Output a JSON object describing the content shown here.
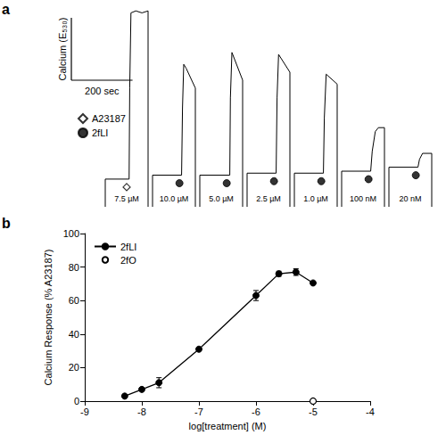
{
  "chart_data": [
    {
      "type": "line",
      "panel_label": "a",
      "ylabel": "Calcium (E₅₃₀)",
      "scale_bar": {
        "value": 200,
        "label": "200 sec"
      },
      "xlim": [
        0,
        140
      ],
      "ylim": [
        0,
        100
      ],
      "tick_labels": false,
      "grid": false,
      "legend": "upper left",
      "color": "#000000",
      "markers": [
        {
          "name": "A23187",
          "marker": "diamond-open"
        },
        {
          "name": "2fLI",
          "marker": "circle"
        }
      ],
      "series": [
        {
          "label": "7.5 µM",
          "treatment": "A23187",
          "addition": 70,
          "x": [
            0,
            0,
            78,
            80,
            84,
            100,
            120,
            140,
            140
          ],
          "values": [
            0,
            14,
            14,
            60,
            98,
            99,
            98,
            99,
            0
          ]
        },
        {
          "label": "10.0 µM",
          "treatment": "2fLI",
          "addition": 88,
          "x": [
            0,
            0,
            95,
            98,
            102,
            110,
            140,
            140
          ],
          "values": [
            0,
            16,
            16,
            50,
            72,
            70,
            60,
            0
          ]
        },
        {
          "label": "5.0 µM",
          "treatment": "2fLI",
          "addition": 88,
          "x": [
            0,
            0,
            98,
            100,
            105,
            140,
            140
          ],
          "values": [
            0,
            16,
            16,
            55,
            78,
            64,
            0
          ]
        },
        {
          "label": "2.5 µM",
          "treatment": "2fLI",
          "addition": 88,
          "x": [
            0,
            0,
            95,
            98,
            103,
            140,
            140
          ],
          "values": [
            0,
            17,
            17,
            55,
            77,
            68,
            0
          ]
        },
        {
          "label": "1.0 µM",
          "treatment": "2fLI",
          "addition": 88,
          "x": [
            0,
            0,
            95,
            98,
            104,
            140,
            140
          ],
          "values": [
            0,
            17,
            17,
            45,
            67,
            62,
            0
          ]
        },
        {
          "label": "100 nM",
          "treatment": "2fLI",
          "addition": 88,
          "x": [
            0,
            0,
            95,
            100,
            110,
            120,
            140,
            140
          ],
          "values": [
            0,
            18,
            18,
            28,
            38,
            40,
            40,
            0
          ]
        },
        {
          "label": "20 nM",
          "treatment": "2fLI",
          "addition": 88,
          "x": [
            0,
            0,
            95,
            100,
            110,
            140,
            140
          ],
          "values": [
            0,
            20,
            20,
            24,
            27,
            27,
            0
          ]
        }
      ]
    },
    {
      "type": "line",
      "panel_label": "b",
      "xlabel": "log[treatment] (M)",
      "ylabel": "Calcium Response (% A23187)",
      "xlim": [
        -9,
        -4
      ],
      "xticks": [
        -9,
        -8,
        -7,
        -6,
        -5,
        -4
      ],
      "ylim": [
        0,
        100
      ],
      "yticks": [
        0,
        20,
        40,
        60,
        80,
        100
      ],
      "grid": false,
      "legend": "upper left",
      "series": [
        {
          "name": "2fLI",
          "color": "#000000",
          "marker": "circle",
          "line_style": "solid",
          "x": [
            -8.3,
            -8.0,
            -7.7,
            -7.0,
            -6.0,
            -5.6,
            -5.3,
            -5.0
          ],
          "values": [
            3,
            7,
            11,
            31,
            63,
            76,
            77,
            70.5
          ],
          "errors": [
            0.5,
            0.8,
            3,
            0.8,
            3,
            1.5,
            2,
            1
          ]
        },
        {
          "name": "2fO",
          "color": "#000000",
          "marker": "circle-open",
          "line_style": "none",
          "x": [
            -5.0
          ],
          "values": [
            0
          ],
          "errors": [
            0
          ]
        }
      ]
    }
  ]
}
